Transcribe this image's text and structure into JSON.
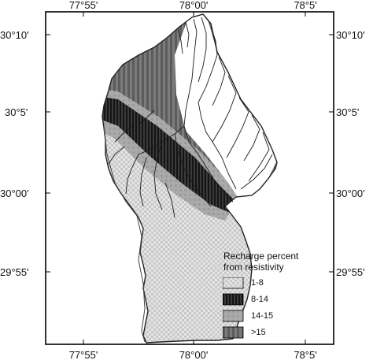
{
  "axes": {
    "top_longitudes": [
      "77°55'",
      "78°00'",
      "78°5'"
    ],
    "bottom_longitudes": [
      "77°55'",
      "78°00'",
      "78°5'"
    ],
    "left_latitudes": [
      "30°10'",
      "30°5'",
      "30°00'",
      "29°55'"
    ],
    "right_latitudes": [
      "30°10'",
      "30°5'",
      "30°00'",
      "29°55'"
    ]
  },
  "legend": {
    "title_line1": "Recharge percent",
    "title_line2": "from resistivity",
    "items": [
      {
        "label": "1-8",
        "pattern": "light-checker"
      },
      {
        "label": "8-14",
        "pattern": "dark-stripes"
      },
      {
        "label": "14-15",
        "pattern": "medium-gray"
      },
      {
        "label": ">15",
        "pattern": "gray-stripes"
      }
    ]
  }
}
